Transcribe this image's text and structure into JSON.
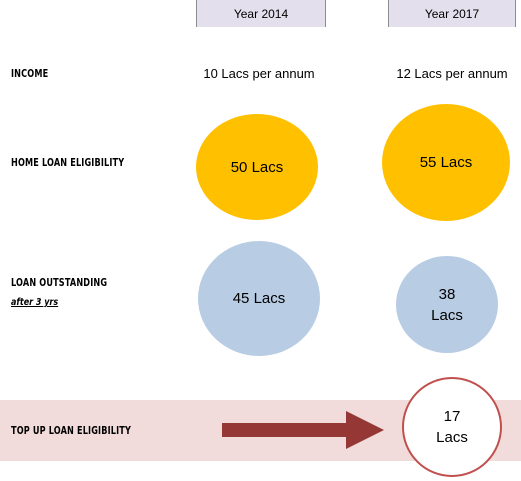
{
  "columns": {
    "col1_header": "Year 2014",
    "col2_header": "Year 2017"
  },
  "rows": {
    "income": {
      "label": "INCOME",
      "col1": "10 Lacs per annum",
      "col2": "12 Lacs per annum"
    },
    "home_loan": {
      "label": "HOME LOAN ELIGIBILITY",
      "col1": "50 Lacs",
      "col2": "55 Lacs"
    },
    "outstanding": {
      "label": "LOAN OUTSTANDING",
      "sublabel": "after 3 yrs",
      "col1": "45 Lacs",
      "col2_line1": "38",
      "col2_line2": "Lacs"
    },
    "top_up": {
      "label": "TOP UP LOAN ELIGIBILITY",
      "value_line1": "17",
      "value_line2": "Lacs"
    }
  },
  "colors": {
    "header_bg": "#e4dfec",
    "gold": "#ffc000",
    "blue": "#b8cce4",
    "band": "#f2dcdb",
    "arrow": "#953735",
    "ring": "#c0504d"
  }
}
